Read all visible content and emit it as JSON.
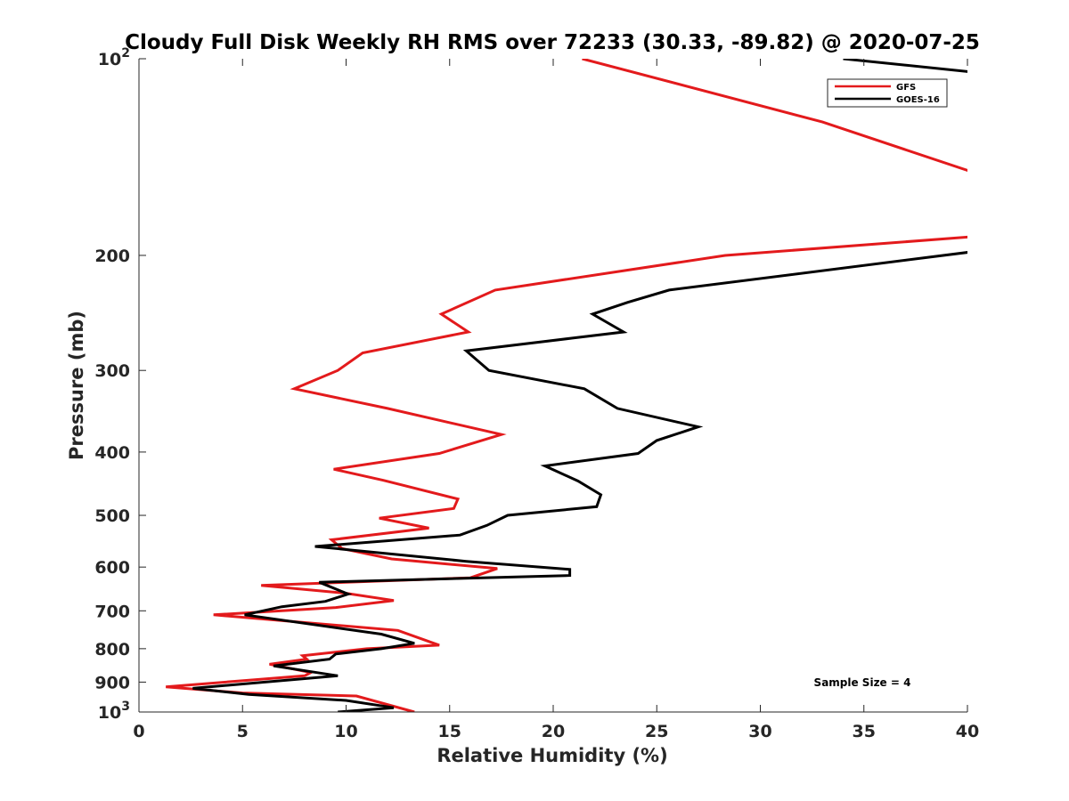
{
  "chart_data": {
    "type": "line",
    "title": "Cloudy Full Disk Weekly RH RMS over 72233 (30.33, -89.82) @ 2020-07-25",
    "xlabel": "Relative Humidity (%)",
    "ylabel": "Pressure (mb)",
    "xlim": [
      0,
      40
    ],
    "ylim": [
      100,
      1000
    ],
    "yscale": "log",
    "yreversed": true,
    "x_ticks": [
      0,
      5,
      10,
      15,
      20,
      25,
      30,
      35,
      40
    ],
    "x_tick_labels": [
      "0",
      "5",
      "10",
      "15",
      "20",
      "25",
      "30",
      "35",
      "40"
    ],
    "y_ticks": [
      100,
      200,
      300,
      400,
      500,
      600,
      700,
      800,
      900,
      1000
    ],
    "y_tick_labels": [
      {
        "base": "10",
        "exp": "2"
      },
      {
        "base": "200",
        "exp": ""
      },
      {
        "base": "300",
        "exp": ""
      },
      {
        "base": "400",
        "exp": ""
      },
      {
        "base": "500",
        "exp": ""
      },
      {
        "base": "600",
        "exp": ""
      },
      {
        "base": "700",
        "exp": ""
      },
      {
        "base": "800",
        "exp": ""
      },
      {
        "base": "900",
        "exp": ""
      },
      {
        "base": "10",
        "exp": "3"
      }
    ],
    "legend_position": "top-right",
    "annotation": "Sample Size = 4",
    "series": [
      {
        "name": "GFS",
        "color": "#e31a1c",
        "points": [
          [
            21.4,
            100
          ],
          [
            33.0,
            125
          ],
          [
            40.5,
            150
          ],
          [
            40.5,
            187
          ],
          [
            28.3,
            200
          ],
          [
            17.2,
            226
          ],
          [
            14.6,
            246
          ],
          [
            15.9,
            262
          ],
          [
            10.8,
            282
          ],
          [
            9.6,
            300
          ],
          [
            7.5,
            320
          ],
          [
            12.0,
            343
          ],
          [
            17.5,
            376
          ],
          [
            14.5,
            402
          ],
          [
            9.4,
            425
          ],
          [
            11.8,
            442
          ],
          [
            15.4,
            472
          ],
          [
            15.2,
            488
          ],
          [
            11.6,
            505
          ],
          [
            14.0,
            523
          ],
          [
            9.3,
            545
          ],
          [
            9.8,
            562
          ],
          [
            12.2,
            583
          ],
          [
            17.3,
            603
          ],
          [
            16.0,
            623
          ],
          [
            5.9,
            640
          ],
          [
            10.0,
            658
          ],
          [
            12.3,
            675
          ],
          [
            9.5,
            692
          ],
          [
            3.6,
            710
          ],
          [
            12.5,
            750
          ],
          [
            14.0,
            780
          ],
          [
            14.5,
            790
          ],
          [
            11.0,
            800
          ],
          [
            7.9,
            820
          ],
          [
            8.1,
            830
          ],
          [
            6.3,
            845
          ],
          [
            7.5,
            860
          ],
          [
            8.3,
            870
          ],
          [
            8.0,
            880
          ],
          [
            1.3,
            915
          ],
          [
            5.0,
            935
          ],
          [
            10.5,
            945
          ],
          [
            13.3,
            1000
          ]
        ]
      },
      {
        "name": "GOES-16",
        "color": "#000000",
        "points": [
          [
            34.0,
            100
          ],
          [
            40.5,
            105
          ],
          [
            40.5,
            197
          ],
          [
            25.6,
            226
          ],
          [
            23.6,
            236
          ],
          [
            21.9,
            246
          ],
          [
            23.4,
            262
          ],
          [
            15.8,
            280
          ],
          [
            16.9,
            300
          ],
          [
            21.5,
            320
          ],
          [
            23.1,
            343
          ],
          [
            27.0,
            366
          ],
          [
            25.0,
            384
          ],
          [
            24.1,
            402
          ],
          [
            19.6,
            420
          ],
          [
            21.2,
            443
          ],
          [
            22.3,
            465
          ],
          [
            22.1,
            485
          ],
          [
            17.8,
            500
          ],
          [
            16.8,
            518
          ],
          [
            15.5,
            536
          ],
          [
            8.5,
            558
          ],
          [
            15.8,
            588
          ],
          [
            20.8,
            605
          ],
          [
            20.8,
            618
          ],
          [
            8.7,
            633
          ],
          [
            10.1,
            660
          ],
          [
            9.0,
            677
          ],
          [
            6.9,
            690
          ],
          [
            5.1,
            710
          ],
          [
            11.7,
            760
          ],
          [
            13.3,
            785
          ],
          [
            11.7,
            800
          ],
          [
            9.5,
            815
          ],
          [
            9.2,
            830
          ],
          [
            6.5,
            850
          ],
          [
            9.6,
            880
          ],
          [
            2.6,
            920
          ],
          [
            5.3,
            940
          ],
          [
            10.0,
            960
          ],
          [
            12.3,
            985
          ],
          [
            9.6,
            1000
          ]
        ]
      }
    ]
  }
}
